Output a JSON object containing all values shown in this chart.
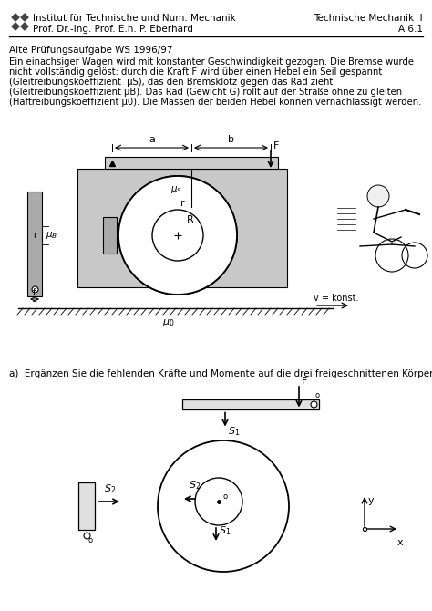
{
  "title_left1": "Institut für Technische und Num. Mechanik",
  "title_left2": "Prof. Dr.-Ing. Prof. E.h. P. Eberhard",
  "title_right1": "Technische Mechanik  I",
  "title_right2": "A 6.1",
  "subtitle": "Alte Prüfungsaufgabe WS 1996/97",
  "para_lines": [
    "Ein einachsiger Wagen wird mit konstanter Geschwindigkeit gezogen. Die Bremse wurde",
    "nicht vollständig gelöst: durch die Kraft F wird über einen Hebel ein Seil gespannt",
    "(Gleitreibungskoeffizient  μS), das den Bremsklotz gegen das Rad zieht",
    "(Gleitreibungskoeffizient μB). Das Rad (Gewicht G) rollt auf der Straße ohne zu gleiten",
    "(Haftreibungskoeffizient μ0). Die Massen der beiden Hebel können vernachlässigt werden."
  ],
  "part_a_label": "a)  Ergänzen Sie die fehlenden Kräfte und Momente auf die drei freigeschnittenen Körper.",
  "bg_color": "#ffffff",
  "text_color": "#000000",
  "line_color": "#000000",
  "gray_color": "#bbbbbb",
  "light_gray": "#dddddd"
}
